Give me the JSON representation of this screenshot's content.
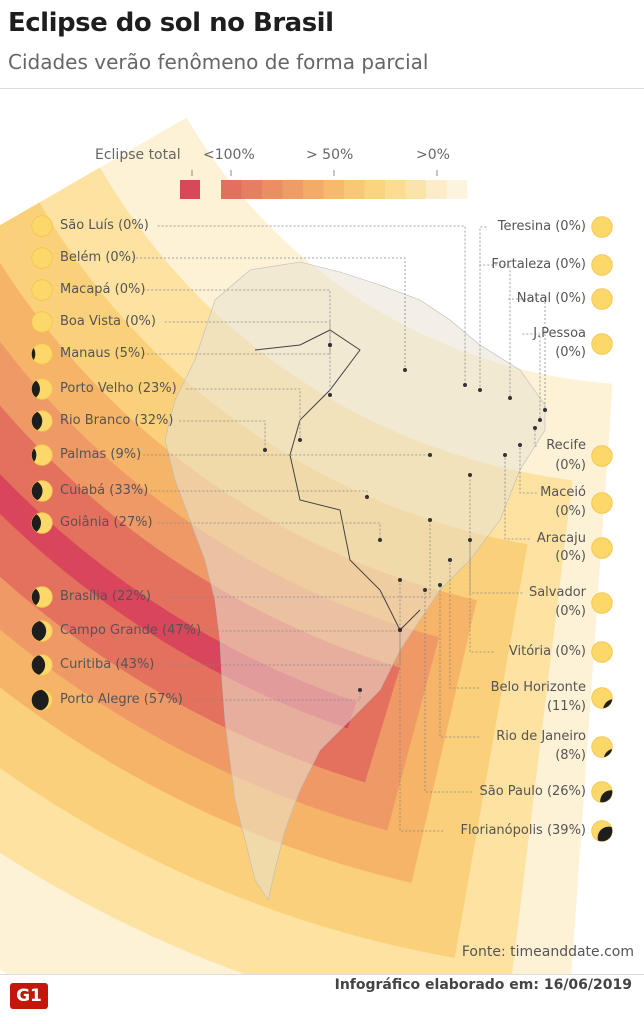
{
  "header": {
    "title": "Eclipse do sol no Brasil",
    "subtitle": "Cidades verão fenômeno de forma parcial"
  },
  "legend": {
    "total_label": "Eclipse total",
    "lt100": "<100%",
    "gt50": "> 50%",
    "gt0": ">0%",
    "total_color": "#d9475b",
    "scale_colors": [
      "#e2705e",
      "#e67f61",
      "#ea8e64",
      "#ee9d67",
      "#f2ab69",
      "#f6ba6d",
      "#f9c874",
      "#fbd57d",
      "#fbdc92",
      "#fbe4ac",
      "#fcecc8",
      "#fdf4e0"
    ]
  },
  "cities_left": [
    {
      "name": "São Luís (0%)",
      "pct": 0
    },
    {
      "name": "Belém (0%)",
      "pct": 0
    },
    {
      "name": "Macapá (0%)",
      "pct": 0
    },
    {
      "name": "Boa Vista (0%)",
      "pct": 0
    },
    {
      "name": "Manaus (5%)",
      "pct": 5
    },
    {
      "name": "Porto Velho (23%)",
      "pct": 23
    },
    {
      "name": "Rio Branco (32%)",
      "pct": 32
    },
    {
      "name": "Palmas (9%)",
      "pct": 9
    },
    {
      "name": "Cuiabá (33%)",
      "pct": 33
    },
    {
      "name": "Goiânia (27%)",
      "pct": 27
    },
    {
      "name": "Brasília (22%)",
      "pct": 22
    },
    {
      "name": "Campo Grande (47%)",
      "pct": 47
    },
    {
      "name": "Curitiba (43%)",
      "pct": 43
    },
    {
      "name": "Porto Alegre (57%)",
      "pct": 57
    }
  ],
  "cities_right": [
    {
      "name": "Teresina (0%)",
      "pct": 0
    },
    {
      "name": "Fortaleza (0%)",
      "pct": 0
    },
    {
      "name": "Natal (0%)",
      "pct": 0
    },
    {
      "name": "J.Pessoa",
      "pct_label": "(0%)",
      "pct": 0
    },
    {
      "name": "Recife",
      "pct_label": "(0%)",
      "pct": 0
    },
    {
      "name": "Maceió",
      "pct_label": "(0%)",
      "pct": 0
    },
    {
      "name": "Aracaju",
      "pct_label": "(0%)",
      "pct": 0
    },
    {
      "name": "Salvador",
      "pct_label": "(0%)",
      "pct": 0
    },
    {
      "name": "Vitória (0%)",
      "pct": 0
    },
    {
      "name": "Belo Horizonte",
      "pct_label": "(11%)",
      "pct": 11
    },
    {
      "name": "Rio de Janeiro",
      "pct_label": "(8%)",
      "pct": 8
    },
    {
      "name": "São Paulo (26%)",
      "pct": 26
    },
    {
      "name": "Florianópolis (39%)",
      "pct": 39
    }
  ],
  "footer": {
    "source": "Fonte: timeanddate.com",
    "logo": "G1",
    "made": "Infográfico elaborado em: 16/06/2019"
  }
}
